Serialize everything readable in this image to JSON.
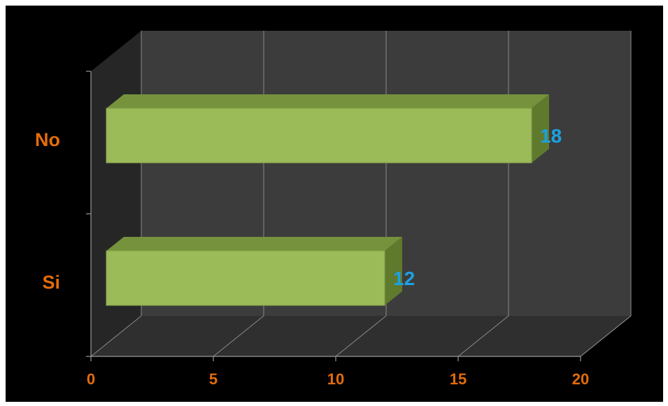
{
  "chart_data": {
    "type": "bar",
    "orientation": "horizontal",
    "categories": [
      "No",
      "Si"
    ],
    "values": [
      18,
      12
    ],
    "data_labels": [
      "18",
      "12"
    ],
    "x_ticks": [
      "0",
      "5",
      "10",
      "15",
      "20"
    ],
    "xlim": [
      0,
      20
    ],
    "grid": true,
    "legend": "none",
    "style": "3d"
  },
  "colors": {
    "background": "#000000",
    "wall": "#3c3c3c",
    "floor": "#2f2f2f",
    "gridline": "#8a8a8a",
    "bar_front": "#9bbb59",
    "bar_top": "#76923c",
    "bar_side": "#5f7a2c",
    "label_orange": "#e46c0a",
    "data_label_blue": "#1ba1e2"
  }
}
